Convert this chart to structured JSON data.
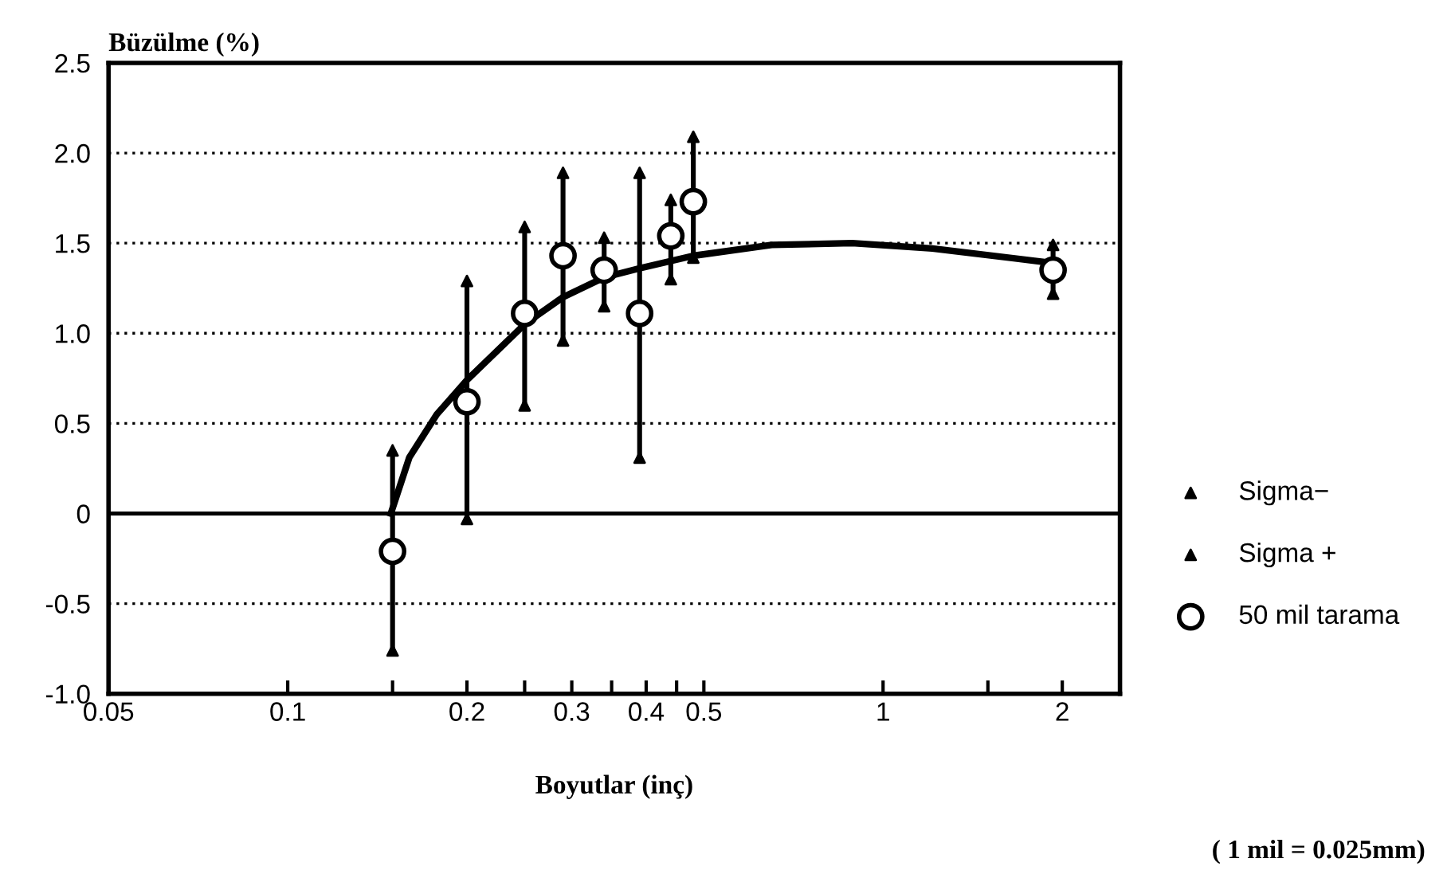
{
  "chart_data": {
    "type": "scatter",
    "ylabel": "Büzülme (%)",
    "xlabel": "Boyutlar (inç)",
    "annotations": [
      "( 1 mil = 0.025mm)"
    ],
    "log": "x",
    "xlim": [
      0.05,
      2.5
    ],
    "xticks": [
      0.05,
      0.1,
      {
        "value": 0.15,
        "label": null
      },
      0.2,
      {
        "value": 0.25,
        "label": null
      },
      0.3,
      {
        "value": 0.35,
        "label": null
      },
      0.4,
      {
        "value": 0.45,
        "label": null
      },
      0.5,
      1,
      {
        "value": 1.5,
        "label": null
      },
      2
    ],
    "ylim": [
      -1.0,
      2.5
    ],
    "yticks": [
      {
        "value": -1.0,
        "label": "-1.0"
      },
      {
        "value": -0.5,
        "label": "-0.5"
      },
      0,
      0.5,
      {
        "value": 1.0,
        "label": "1.0"
      },
      1.5,
      {
        "value": 2.0,
        "label": "2.0"
      },
      2.5
    ],
    "grid": "y",
    "ref_lines": [
      {
        "axis": "y",
        "value": 0,
        "color": "#000000",
        "line_style": "solid"
      }
    ],
    "legend": "right",
    "series": [
      {
        "name": "Sigma−",
        "type": "scatter",
        "marker": "triangle",
        "color": "#000000",
        "x": [
          0.15,
          0.2,
          0.25,
          0.29,
          0.34,
          0.39,
          0.44,
          0.48,
          1.93
        ],
        "values": [
          -0.76,
          -0.03,
          0.6,
          0.96,
          1.15,
          0.31,
          1.3,
          1.42,
          1.22
        ]
      },
      {
        "name": "Sigma +",
        "type": "scatter",
        "marker": "triangle",
        "color": "#000000",
        "x": [
          0.15,
          0.2,
          0.25,
          0.29,
          0.34,
          0.39,
          0.44,
          0.48,
          1.93
        ],
        "values": [
          0.35,
          1.29,
          1.59,
          1.89,
          1.53,
          1.89,
          1.74,
          2.09,
          1.49
        ]
      },
      {
        "name": "50 mil tarama",
        "type": "scatter",
        "marker": "circle",
        "color": "#000000",
        "x": [
          0.15,
          0.2,
          0.25,
          0.29,
          0.34,
          0.39,
          0.44,
          0.48,
          1.93
        ],
        "values": [
          -0.21,
          0.62,
          1.11,
          1.43,
          1.35,
          1.11,
          1.54,
          1.73,
          1.35
        ],
        "errors": [
          [
            -0.76,
            0.35
          ],
          [
            -0.03,
            1.29
          ],
          [
            0.6,
            1.59
          ],
          [
            0.96,
            1.89
          ],
          [
            1.15,
            1.53
          ],
          [
            0.31,
            1.89
          ],
          [
            1.3,
            1.74
          ],
          [
            1.42,
            2.09
          ],
          [
            1.22,
            1.49
          ]
        ]
      },
      {
        "type": "line",
        "marker": "none",
        "line_style": "solid",
        "color": "#000000",
        "x": [
          0.149,
          0.16,
          0.178,
          0.2,
          0.25,
          0.29,
          0.34,
          0.39,
          0.48,
          0.65,
          0.887,
          1.21,
          1.82,
          1.93
        ],
        "values": [
          0,
          0.31,
          0.55,
          0.74,
          1.05,
          1.2,
          1.31,
          1.36,
          1.43,
          1.49,
          1.5,
          1.47,
          1.4,
          1.39
        ]
      }
    ]
  }
}
